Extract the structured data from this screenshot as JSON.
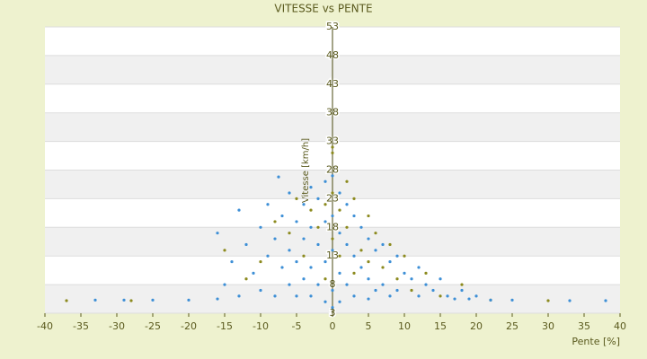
{
  "chart_data": {
    "type": "scatter",
    "title": "VITESSE vs PENTE",
    "x_label": "Pente [%]",
    "y_label": "Vitesse [km/h]",
    "xlim": [
      -40,
      40
    ],
    "xticks": [
      -40,
      -35,
      -30,
      -25,
      -20,
      -15,
      -10,
      -5,
      0,
      5,
      10,
      15,
      20,
      25,
      30,
      35,
      40
    ],
    "ylim": [
      3,
      53
    ],
    "yticks": [
      3,
      8,
      13,
      18,
      23,
      28,
      33,
      38,
      43,
      48,
      53
    ],
    "grid": true,
    "series": [
      {
        "color": "#8c8a1e",
        "x": [
          -37,
          -28,
          -15,
          -12,
          -10,
          -8,
          -6,
          -5,
          -4,
          -3,
          -2,
          -1,
          -1,
          0,
          0,
          0,
          0,
          1,
          1,
          2,
          2,
          3,
          3,
          4,
          5,
          5,
          6,
          7,
          8,
          9,
          10,
          11,
          13,
          15,
          18,
          22,
          30
        ],
        "values": [
          5.2,
          5.2,
          14,
          9,
          12,
          19,
          17,
          23,
          13,
          21,
          18,
          22,
          9,
          31,
          32,
          24,
          16,
          21,
          13,
          26,
          18,
          23,
          10,
          14,
          20,
          12,
          17,
          11,
          15,
          9,
          13,
          7,
          10,
          6,
          8,
          5.3,
          5.2
        ]
      },
      {
        "color": "#3d8fd6",
        "x": [
          -16,
          -15,
          -14,
          -13,
          -12,
          -11,
          -10,
          -10,
          -9,
          -9,
          -8,
          -8,
          -7,
          -7,
          -6,
          -6,
          -6,
          -5,
          -5,
          -5,
          -4,
          -4,
          -4,
          -3,
          -3,
          -3,
          -3,
          -2,
          -2,
          -2,
          -1,
          -1,
          -1,
          -1,
          0,
          0,
          0,
          0,
          0,
          1,
          1,
          1,
          1,
          2,
          2,
          2,
          3,
          3,
          3,
          4,
          4,
          5,
          5,
          5,
          6,
          6,
          7,
          7,
          8,
          8,
          9,
          9,
          10,
          11,
          12,
          12,
          13,
          14,
          15,
          16,
          17,
          18,
          19,
          20,
          22,
          25,
          -20,
          -25,
          -29,
          -33,
          33,
          38,
          -7.5,
          -13,
          -16
        ],
        "values": [
          5.5,
          8,
          12,
          6,
          15,
          10,
          18,
          7,
          13,
          22,
          16,
          6,
          20,
          11,
          24,
          14,
          8,
          19,
          12,
          6,
          22,
          16,
          9,
          25,
          18,
          11,
          6,
          23,
          15,
          8,
          26,
          19,
          12,
          5,
          27,
          20,
          14,
          7,
          4,
          24,
          17,
          10,
          5,
          22,
          15,
          8,
          20,
          13,
          6,
          18,
          11,
          16,
          9,
          5.5,
          14,
          7,
          15,
          8,
          12,
          6,
          13,
          7,
          10,
          9,
          11,
          6,
          8,
          7,
          9,
          6,
          5.5,
          7,
          5.5,
          6,
          5.3,
          5.3,
          5.3,
          5.3,
          5.3,
          5.3,
          5.2,
          5.2,
          26.8,
          21,
          17
        ]
      }
    ]
  }
}
